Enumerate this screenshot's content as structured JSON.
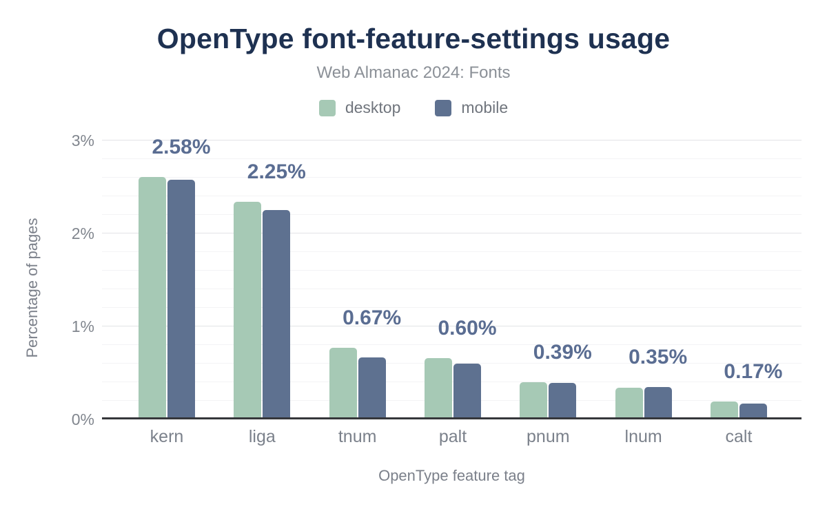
{
  "figure": {
    "title": "OpenType font-feature-settings usage",
    "subtitle": "Web Almanac 2024: Fonts"
  },
  "legend": [
    {
      "label": "desktop",
      "color": "#a6c9b5"
    },
    {
      "label": "mobile",
      "color": "#5e7190"
    }
  ],
  "chart_data": {
    "type": "bar",
    "title": "OpenType font-feature-settings usage",
    "subtitle": "Web Almanac 2024: Fonts",
    "categories": [
      "kern",
      "liga",
      "tnum",
      "palt",
      "pnum",
      "lnum",
      "calt"
    ],
    "series": [
      {
        "name": "desktop",
        "color": "#a6c9b5",
        "values": [
          2.61,
          2.34,
          0.77,
          0.66,
          0.4,
          0.34,
          0.19
        ]
      },
      {
        "name": "mobile",
        "color": "#5e7190",
        "values": [
          2.58,
          2.25,
          0.67,
          0.6,
          0.39,
          0.35,
          0.17
        ]
      }
    ],
    "data_labels": [
      "2.58%",
      "2.25%",
      "0.67%",
      "0.60%",
      "0.39%",
      "0.35%",
      "0.17%"
    ],
    "xlabel": "OpenType feature tag",
    "ylabel": "Percentage of pages",
    "y_ticks": [
      {
        "label": "0%",
        "value": 0
      },
      {
        "label": "1%",
        "value": 1
      },
      {
        "label": "2%",
        "value": 2
      },
      {
        "label": "3%",
        "value": 3
      }
    ],
    "ylim": [
      0,
      3
    ],
    "grid": {
      "major_step": 1.0,
      "minor_step": 0.2,
      "vertical": false
    },
    "legend_position": "top"
  },
  "colors": {
    "title": "#1e3151",
    "subtitle": "#8b9097",
    "data_label": "#5a6d92",
    "axis_line": "#35363a",
    "grid_major": "#e2e3e6",
    "grid_minor": "#f3f3f5",
    "tick_text": "#81868e"
  }
}
